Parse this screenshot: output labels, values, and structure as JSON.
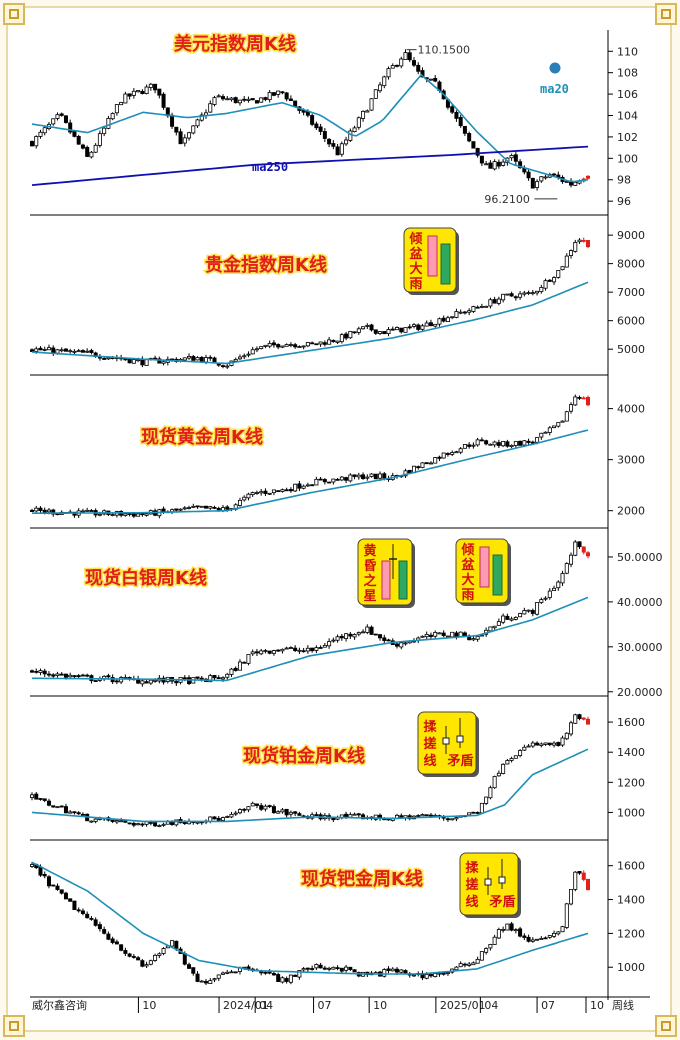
{
  "chart_data": [
    {
      "type": "candlestick",
      "title": "美元指数周K线",
      "yticks": [
        96,
        98,
        100,
        102,
        104,
        106,
        108,
        110
      ],
      "ylim": [
        94.8,
        111.8
      ],
      "close_path": [
        [
          0,
          101.5
        ],
        [
          0.05,
          104
        ],
        [
          0.1,
          100
        ],
        [
          0.16,
          105.5
        ],
        [
          0.22,
          106.8
        ],
        [
          0.27,
          101.3
        ],
        [
          0.33,
          105.7
        ],
        [
          0.39,
          105.2
        ],
        [
          0.45,
          106.2
        ],
        [
          0.5,
          103.5
        ],
        [
          0.55,
          100.5
        ],
        [
          0.6,
          104.5
        ],
        [
          0.64,
          108
        ],
        [
          0.67,
          109.8
        ],
        [
          0.7,
          107.5
        ],
        [
          0.73,
          106.8
        ],
        [
          0.78,
          102
        ],
        [
          0.82,
          99
        ],
        [
          0.86,
          100.2
        ],
        [
          0.9,
          97.5
        ],
        [
          0.93,
          98.5
        ],
        [
          0.97,
          97.6
        ],
        [
          1.0,
          98.6
        ]
      ],
      "ma20_path": [
        [
          0,
          103.2
        ],
        [
          0.1,
          102.4
        ],
        [
          0.2,
          104.3
        ],
        [
          0.28,
          103.8
        ],
        [
          0.35,
          104.2
        ],
        [
          0.45,
          105.2
        ],
        [
          0.52,
          104
        ],
        [
          0.58,
          102
        ],
        [
          0.63,
          103.5
        ],
        [
          0.7,
          107.8
        ],
        [
          0.74,
          106
        ],
        [
          0.8,
          102.5
        ],
        [
          0.86,
          99.5
        ],
        [
          0.92,
          98.6
        ],
        [
          0.97,
          97.8
        ],
        [
          1.0,
          98
        ]
      ],
      "ma250_path": [
        [
          0,
          97.5
        ],
        [
          0.4,
          99.4
        ],
        [
          0.75,
          100.3
        ],
        [
          1.0,
          101.1
        ]
      ],
      "annotations": [
        {
          "text": "110.1500",
          "x": 0.67,
          "y": 110.15
        },
        {
          "text": "96.2100",
          "x": 0.9,
          "y": 96.21
        }
      ],
      "legend_labels": [
        {
          "text": "ma20",
          "color": "#1e8fb8"
        },
        {
          "text": "ma250",
          "color": "#1010b0"
        }
      ],
      "badge": null
    },
    {
      "type": "candlestick",
      "title": "贵金指数周K线",
      "yticks": [
        5000,
        6000,
        7000,
        8000,
        9000
      ],
      "ylim": [
        4200,
        9600
      ],
      "close_path": [
        [
          0,
          5000
        ],
        [
          0.1,
          4850
        ],
        [
          0.2,
          4550
        ],
        [
          0.3,
          4700
        ],
        [
          0.35,
          4450
        ],
        [
          0.4,
          5000
        ],
        [
          0.45,
          5200
        ],
        [
          0.5,
          5150
        ],
        [
          0.55,
          5350
        ],
        [
          0.6,
          5750
        ],
        [
          0.63,
          5600
        ],
        [
          0.7,
          5800
        ],
        [
          0.75,
          6150
        ],
        [
          0.8,
          6450
        ],
        [
          0.85,
          6850
        ],
        [
          0.9,
          6950
        ],
        [
          0.95,
          7800
        ],
        [
          0.98,
          8900
        ],
        [
          1.0,
          8700
        ]
      ],
      "ma20_path": [
        [
          0,
          4900
        ],
        [
          0.2,
          4650
        ],
        [
          0.35,
          4500
        ],
        [
          0.5,
          4950
        ],
        [
          0.65,
          5400
        ],
        [
          0.8,
          6050
        ],
        [
          0.9,
          6550
        ],
        [
          1.0,
          7350
        ]
      ],
      "badge": {
        "type": "qingpen",
        "chars": [
          "倾",
          "盆",
          "大",
          "雨"
        ]
      }
    },
    {
      "type": "candlestick",
      "title": "现货黄金周K线",
      "yticks": [
        2000,
        3000,
        4000
      ],
      "ylim": [
        1700,
        4600
      ],
      "close_path": [
        [
          0,
          2000
        ],
        [
          0.1,
          1950
        ],
        [
          0.2,
          1930
        ],
        [
          0.3,
          2050
        ],
        [
          0.35,
          2020
        ],
        [
          0.4,
          2350
        ],
        [
          0.45,
          2400
        ],
        [
          0.5,
          2550
        ],
        [
          0.6,
          2680
        ],
        [
          0.65,
          2650
        ],
        [
          0.7,
          2900
        ],
        [
          0.75,
          3150
        ],
        [
          0.8,
          3350
        ],
        [
          0.85,
          3300
        ],
        [
          0.9,
          3350
        ],
        [
          0.95,
          3700
        ],
        [
          0.98,
          4300
        ],
        [
          1.0,
          4100
        ]
      ],
      "ma20_path": [
        [
          0,
          1950
        ],
        [
          0.2,
          1960
        ],
        [
          0.35,
          2000
        ],
        [
          0.5,
          2350
        ],
        [
          0.65,
          2650
        ],
        [
          0.8,
          3050
        ],
        [
          0.9,
          3300
        ],
        [
          1.0,
          3580
        ]
      ],
      "badge": {
        "type": "qingpen",
        "chars": [
          "倾",
          "盆",
          "大",
          "雨"
        ]
      }
    },
    {
      "type": "candlestick",
      "title": "现货白银周K线",
      "yticks": [
        20,
        30,
        40,
        50
      ],
      "ytick_labels": [
        "20.0000",
        "30.0000",
        "40.0000",
        "50.0000"
      ],
      "ylim": [
        19.5,
        56
      ],
      "close_path": [
        [
          0,
          24.5
        ],
        [
          0.1,
          23
        ],
        [
          0.2,
          22.5
        ],
        [
          0.3,
          22.5
        ],
        [
          0.35,
          23.5
        ],
        [
          0.4,
          29
        ],
        [
          0.45,
          29.5
        ],
        [
          0.5,
          29
        ],
        [
          0.55,
          32
        ],
        [
          0.6,
          34
        ],
        [
          0.65,
          30.5
        ],
        [
          0.7,
          32
        ],
        [
          0.75,
          33
        ],
        [
          0.8,
          32
        ],
        [
          0.85,
          36.5
        ],
        [
          0.9,
          38
        ],
        [
          0.95,
          45
        ],
        [
          0.98,
          53.5
        ],
        [
          1.0,
          50.5
        ]
      ],
      "ma20_path": [
        [
          0,
          23
        ],
        [
          0.2,
          22.8
        ],
        [
          0.35,
          22.5
        ],
        [
          0.5,
          28
        ],
        [
          0.65,
          31
        ],
        [
          0.8,
          32.5
        ],
        [
          0.9,
          36
        ],
        [
          1.0,
          41
        ]
      ],
      "badge": {
        "type": "huanghun",
        "chars": [
          "黄",
          "昏",
          "之",
          "星"
        ]
      },
      "badge2": {
        "type": "qingpen",
        "chars": [
          "倾",
          "盆",
          "大",
          "雨"
        ]
      }
    },
    {
      "type": "candlestick",
      "title": "现货铂金周K线",
      "yticks": [
        1000,
        1200,
        1400,
        1600
      ],
      "ylim": [
        830,
        1760
      ],
      "close_path": [
        [
          0,
          1100
        ],
        [
          0.1,
          960
        ],
        [
          0.2,
          920
        ],
        [
          0.3,
          950
        ],
        [
          0.35,
          960
        ],
        [
          0.4,
          1050
        ],
        [
          0.45,
          1000
        ],
        [
          0.5,
          970
        ],
        [
          0.6,
          970
        ],
        [
          0.65,
          960
        ],
        [
          0.7,
          980
        ],
        [
          0.75,
          960
        ],
        [
          0.8,
          1000
        ],
        [
          0.85,
          1350
        ],
        [
          0.9,
          1450
        ],
        [
          0.95,
          1450
        ],
        [
          0.98,
          1650
        ],
        [
          1.0,
          1580
        ]
      ],
      "ma20_path": [
        [
          0,
          1000
        ],
        [
          0.2,
          940
        ],
        [
          0.35,
          940
        ],
        [
          0.5,
          970
        ],
        [
          0.65,
          960
        ],
        [
          0.8,
          980
        ],
        [
          0.85,
          1050
        ],
        [
          0.9,
          1250
        ],
        [
          1.0,
          1420
        ]
      ],
      "badge": {
        "type": "rongcuo",
        "chars": [
          "揉",
          "搓",
          "线",
          "矛",
          "盾"
        ]
      }
    },
    {
      "type": "candlestick",
      "title": "现货钯金周K线",
      "yticks": [
        1000,
        1200,
        1400,
        1600
      ],
      "ylim": [
        830,
        1740
      ],
      "close_path": [
        [
          0,
          1600
        ],
        [
          0.06,
          1400
        ],
        [
          0.12,
          1230
        ],
        [
          0.2,
          1000
        ],
        [
          0.25,
          1150
        ],
        [
          0.3,
          900
        ],
        [
          0.35,
          980
        ],
        [
          0.4,
          1000
        ],
        [
          0.45,
          920
        ],
        [
          0.5,
          1000
        ],
        [
          0.55,
          1000
        ],
        [
          0.6,
          950
        ],
        [
          0.65,
          980
        ],
        [
          0.7,
          950
        ],
        [
          0.75,
          970
        ],
        [
          0.8,
          1050
        ],
        [
          0.85,
          1250
        ],
        [
          0.9,
          1150
        ],
        [
          0.95,
          1200
        ],
        [
          0.98,
          1600
        ],
        [
          1.0,
          1450
        ]
      ],
      "ma20_path": [
        [
          0,
          1620
        ],
        [
          0.1,
          1450
        ],
        [
          0.2,
          1200
        ],
        [
          0.3,
          1040
        ],
        [
          0.4,
          980
        ],
        [
          0.5,
          970
        ],
        [
          0.6,
          960
        ],
        [
          0.7,
          960
        ],
        [
          0.8,
          990
        ],
        [
          0.9,
          1100
        ],
        [
          1.0,
          1200
        ]
      ],
      "badge": {
        "type": "rongcuo",
        "chars": [
          "揉",
          "搓",
          "线",
          "矛",
          "盾"
        ]
      }
    }
  ],
  "x_axis": {
    "ticks": [
      {
        "label": "10",
        "x": 0.195
      },
      {
        "label": "2024/01",
        "x": 0.34
      },
      {
        "label": "04",
        "x": 0.405
      },
      {
        "label": "07",
        "x": 0.51
      },
      {
        "label": "10",
        "x": 0.61
      },
      {
        "label": "2025/01",
        "x": 0.73
      },
      {
        "label": "04",
        "x": 0.81
      },
      {
        "label": "07",
        "x": 0.912
      },
      {
        "label": "10",
        "x": 1.0
      }
    ],
    "source_label": "威尔鑫咨询",
    "period_label": "周线"
  },
  "colors": {
    "up": "#ffffff",
    "down": "#000000",
    "ma20": "#1e8fb8",
    "ma250": "#1010b0",
    "last_candle": "#e0201b"
  }
}
